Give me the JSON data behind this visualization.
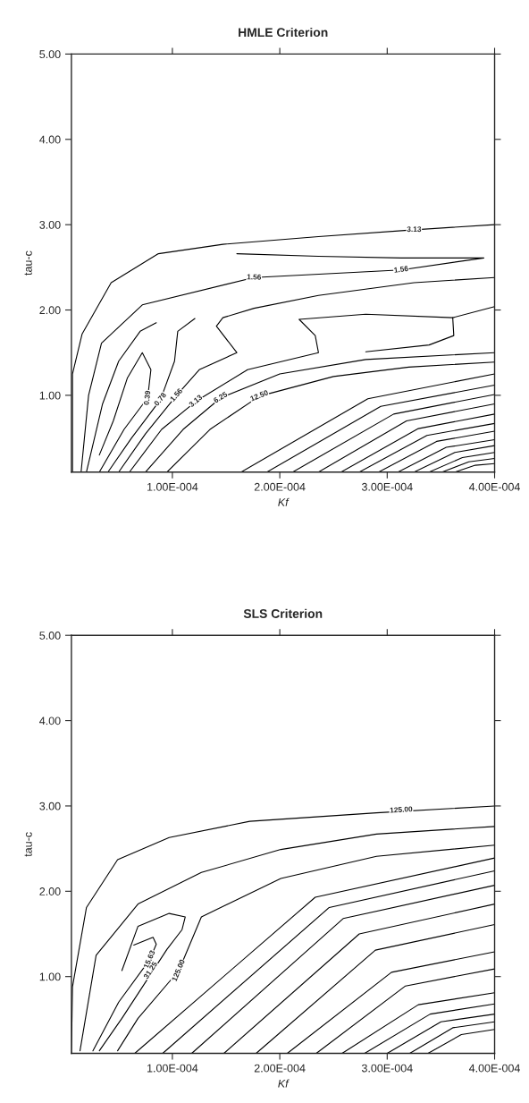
{
  "chart_data": [
    {
      "type": "line",
      "title": "HMLE Criterion",
      "xlabel": "Kf",
      "ylabel": "tau-c",
      "xlim": [
        6e-06,
        0.0004
      ],
      "ylim": [
        0.1,
        5.0
      ],
      "xticks": [
        {
          "value": 0.0001,
          "label": "1.00E-004"
        },
        {
          "value": 0.0002,
          "label": "2.00E-004"
        },
        {
          "value": 0.0003,
          "label": "3.00E-004"
        },
        {
          "value": 0.0004,
          "label": "4.00E-004"
        }
      ],
      "yticks": [
        {
          "value": 1,
          "label": "1.00"
        },
        {
          "value": 2,
          "label": "2.00"
        },
        {
          "value": 3,
          "label": "3.00"
        },
        {
          "value": 4,
          "label": "4.00"
        },
        {
          "value": 5,
          "label": "5.00"
        }
      ],
      "series": [
        {
          "color": "#000000",
          "x": [
            7e-06,
            7e-06,
            1.6e-05,
            4.3e-05,
            8.7e-05,
            0.000147,
            0.000236,
            0.000325,
            0.0004
          ],
          "values": [
            0.1,
            1.25,
            1.72,
            2.32,
            2.66,
            2.77,
            2.86,
            2.94,
            3.0
          ]
        },
        {
          "color": "#000000",
          "x": [
            1.5e-05,
            2.2e-05,
            3.4e-05,
            7.2e-05,
            0.000176,
            0.000313,
            0.00039,
            0.000313,
            0.000236,
            0.00016
          ],
          "values": [
            0.1,
            1.0,
            1.61,
            2.06,
            2.38,
            2.47,
            2.61,
            2.61,
            2.63,
            2.66
          ]
        },
        {
          "color": "#000000",
          "x": [
            5e-05,
            7.5e-05,
            0.000104,
            0.000125,
            0.00016,
            0.000141,
            0.000147,
            0.000176,
            0.000236,
            0.000325,
            0.0004
          ],
          "values": [
            0.1,
            0.55,
            1.0,
            1.3,
            1.5,
            1.81,
            1.91,
            2.02,
            2.17,
            2.32,
            2.38
          ]
        },
        {
          "color": "#000000",
          "x": [
            6e-05,
            9e-05,
            0.000122,
            0.00017,
            0.000236,
            0.000233,
            0.000218,
            0.00028,
            0.000361,
            0.0004
          ],
          "values": [
            0.1,
            0.6,
            0.93,
            1.3,
            1.5,
            1.7,
            1.89,
            1.95,
            1.91,
            2.04
          ]
        },
        {
          "color": "#000000",
          "x": [
            0.00028,
            0.000339,
            0.000362,
            0.000361
          ],
          "values": [
            1.51,
            1.59,
            1.7,
            1.91
          ]
        },
        {
          "color": "#000000",
          "x": [
            3.2e-05,
            5.5e-05,
            7.7e-05,
            8e-05,
            7.2e-05,
            5.8e-05,
            4.5e-05,
            3.2e-05
          ],
          "values": [
            0.1,
            0.6,
            0.97,
            1.3,
            1.5,
            1.2,
            0.7,
            0.3
          ]
        },
        {
          "color": "#000000",
          "x": [
            4e-05,
            6.2e-05,
            8.9e-05,
            0.000102,
            0.000105,
            0.000121
          ],
          "values": [
            0.1,
            0.5,
            0.95,
            1.4,
            1.75,
            1.9
          ]
        },
        {
          "color": "#000000",
          "x": [
            2e-05,
            3.5e-05,
            5e-05,
            7e-05,
            8.5e-05
          ],
          "values": [
            0.1,
            0.9,
            1.4,
            1.75,
            1.85
          ]
        },
        {
          "color": "#000000",
          "x": [
            7.5e-05,
            0.00011,
            0.000145,
            0.0002,
            0.00028,
            0.0004
          ],
          "values": [
            0.1,
            0.6,
            0.97,
            1.25,
            1.42,
            1.5
          ]
        },
        {
          "color": "#000000",
          "x": [
            9.5e-05,
            0.000135,
            0.000181,
            0.00025,
            0.00032,
            0.0004
          ],
          "values": [
            0.1,
            0.6,
            0.99,
            1.22,
            1.33,
            1.39
          ]
        },
        {
          "color": "#000000",
          "x": [
            0.000164,
            0.000282,
            0.0004
          ],
          "values": [
            0.1,
            0.96,
            1.25
          ]
        },
        {
          "color": "#000000",
          "x": [
            0.000188,
            0.000294,
            0.0004
          ],
          "values": [
            0.1,
            0.87,
            1.12
          ]
        },
        {
          "color": "#000000",
          "x": [
            0.000212,
            0.000306,
            0.0004
          ],
          "values": [
            0.1,
            0.78,
            1.01
          ]
        },
        {
          "color": "#000000",
          "x": [
            0.000236,
            0.000318,
            0.0004
          ],
          "values": [
            0.1,
            0.7,
            0.9
          ]
        },
        {
          "color": "#000000",
          "x": [
            0.000257,
            0.000329,
            0.0004
          ],
          "values": [
            0.1,
            0.61,
            0.78
          ]
        },
        {
          "color": "#000000",
          "x": [
            0.000274,
            0.000337,
            0.0004
          ],
          "values": [
            0.1,
            0.53,
            0.67
          ]
        },
        {
          "color": "#000000",
          "x": [
            0.000292,
            0.000346,
            0.0004
          ],
          "values": [
            0.1,
            0.46,
            0.58
          ]
        },
        {
          "color": "#000000",
          "x": [
            0.00031,
            0.000355,
            0.0004
          ],
          "values": [
            0.1,
            0.39,
            0.48
          ]
        },
        {
          "color": "#000000",
          "x": [
            0.000325,
            0.000363,
            0.0004
          ],
          "values": [
            0.1,
            0.33,
            0.41
          ]
        },
        {
          "color": "#000000",
          "x": [
            0.000339,
            0.00037,
            0.0004
          ],
          "values": [
            0.1,
            0.27,
            0.33
          ]
        },
        {
          "color": "#000000",
          "x": [
            0.000351,
            0.000376,
            0.0004
          ],
          "values": [
            0.1,
            0.22,
            0.26
          ]
        },
        {
          "color": "#000000",
          "x": [
            0.000363,
            0.000382,
            0.0004
          ],
          "values": [
            0.1,
            0.18,
            0.2
          ]
        }
      ],
      "annotations": [
        {
          "text": "3.13",
          "x": 0.000325,
          "y": 2.94
        },
        {
          "text": "1.56",
          "x": 0.000176,
          "y": 2.38
        },
        {
          "text": "1.56",
          "x": 0.000313,
          "y": 2.47
        },
        {
          "text": "0.39",
          "x": 7.7e-05,
          "y": 0.97
        },
        {
          "text": "0.78",
          "x": 8.9e-05,
          "y": 0.95
        },
        {
          "text": "1.56",
          "x": 0.000104,
          "y": 1.0
        },
        {
          "text": "3.13",
          "x": 0.000122,
          "y": 0.93
        },
        {
          "text": "6.25",
          "x": 0.000145,
          "y": 0.97
        },
        {
          "text": "12.50",
          "x": 0.000181,
          "y": 0.99
        }
      ]
    },
    {
      "type": "line",
      "title": "SLS Criterion",
      "xlabel": "Kf",
      "ylabel": "tau-c",
      "xlim": [
        6e-06,
        0.0004
      ],
      "ylim": [
        0.1,
        5.0
      ],
      "xticks": [
        {
          "value": 0.0001,
          "label": "1.00E-004"
        },
        {
          "value": 0.0002,
          "label": "2.00E-004"
        },
        {
          "value": 0.0003,
          "label": "3.00E-004"
        },
        {
          "value": 0.0004,
          "label": "4.00E-004"
        }
      ],
      "yticks": [
        {
          "value": 1,
          "label": "1.00"
        },
        {
          "value": 2,
          "label": "2.00"
        },
        {
          "value": 3,
          "label": "3.00"
        },
        {
          "value": 4,
          "label": "4.00"
        },
        {
          "value": 5,
          "label": "5.00"
        }
      ],
      "series": [
        {
          "color": "#000000",
          "x": [
            6e-06,
            7e-06,
            2e-05,
            4.9e-05,
            9.7e-05,
            0.000172,
            0.00029,
            0.0004
          ],
          "values": [
            0.1,
            0.88,
            1.81,
            2.37,
            2.63,
            2.82,
            2.92,
            3.0
          ]
        },
        {
          "color": "#000000",
          "x": [
            1.4e-05,
            2.9e-05,
            6.8e-05,
            0.000127,
            0.000201,
            0.00029,
            0.0004
          ],
          "values": [
            0.13,
            1.25,
            1.85,
            2.22,
            2.49,
            2.67,
            2.76
          ]
        },
        {
          "color": "#000000",
          "x": [
            4.9e-05,
            6.8e-05,
            0.000106,
            0.000127,
            0.000201,
            0.00029,
            0.0004
          ],
          "values": [
            0.13,
            0.51,
            1.07,
            1.7,
            2.15,
            2.41,
            2.54
          ]
        },
        {
          "color": "#000000",
          "x": [
            3.2e-05,
            5.3e-05,
            9.5e-05,
            0.000109,
            0.000112,
            9.7e-05,
            6.8e-05,
            5.3e-05
          ],
          "values": [
            0.13,
            0.51,
            1.32,
            1.55,
            1.7,
            1.74,
            1.59,
            1.07
          ]
        },
        {
          "color": "#000000",
          "x": [
            2.6e-05,
            5e-05,
            7.9e-05,
            8.5e-05,
            8.2e-05,
            6.4e-05
          ],
          "values": [
            0.13,
            0.7,
            1.2,
            1.38,
            1.46,
            1.37
          ]
        },
        {
          "color": "#000000",
          "x": [
            6.5e-05,
            0.000233,
            0.0004
          ],
          "values": [
            0.1,
            1.93,
            2.39
          ]
        },
        {
          "color": "#000000",
          "x": [
            9.1e-05,
            0.000246,
            0.0004
          ],
          "values": [
            0.1,
            1.81,
            2.24
          ]
        },
        {
          "color": "#000000",
          "x": [
            0.000118,
            0.000259,
            0.0004
          ],
          "values": [
            0.1,
            1.68,
            2.07
          ]
        },
        {
          "color": "#000000",
          "x": [
            0.000148,
            0.000274,
            0.0004
          ],
          "values": [
            0.1,
            1.5,
            1.85
          ]
        },
        {
          "color": "#000000",
          "x": [
            0.000178,
            0.000289,
            0.0004
          ],
          "values": [
            0.1,
            1.31,
            1.61
          ]
        },
        {
          "color": "#000000",
          "x": [
            0.000207,
            0.000304,
            0.0004
          ],
          "values": [
            0.1,
            1.05,
            1.29
          ]
        },
        {
          "color": "#000000",
          "x": [
            0.000234,
            0.000317,
            0.0004
          ],
          "values": [
            0.1,
            0.89,
            1.09
          ]
        },
        {
          "color": "#000000",
          "x": [
            0.000258,
            0.000329,
            0.0004
          ],
          "values": [
            0.1,
            0.67,
            0.81
          ]
        },
        {
          "color": "#000000",
          "x": [
            0.000279,
            0.00034,
            0.0004
          ],
          "values": [
            0.1,
            0.56,
            0.68
          ]
        },
        {
          "color": "#000000",
          "x": [
            0.0003,
            0.00035,
            0.0004
          ],
          "values": [
            0.1,
            0.47,
            0.56
          ]
        },
        {
          "color": "#000000",
          "x": [
            0.000321,
            0.000361,
            0.0004
          ],
          "values": [
            0.1,
            0.4,
            0.47
          ]
        },
        {
          "color": "#000000",
          "x": [
            0.000338,
            0.000369,
            0.0004
          ],
          "values": [
            0.1,
            0.32,
            0.38
          ]
        }
      ],
      "annotations": [
        {
          "text": "125.00",
          "x": 0.000313,
          "y": 2.95
        },
        {
          "text": "15.63",
          "x": 7.9e-05,
          "y": 1.2
        },
        {
          "text": "31.25",
          "x": 8e-05,
          "y": 1.07
        },
        {
          "text": "125.00",
          "x": 0.000106,
          "y": 1.07
        }
      ]
    }
  ]
}
